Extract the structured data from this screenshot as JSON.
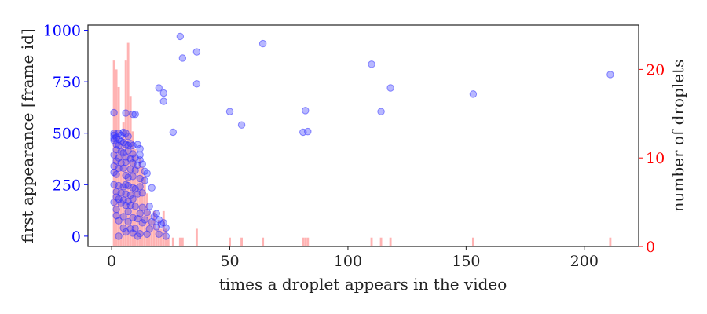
{
  "chart_data": {
    "type": "scatter",
    "xlabel": "times a droplet appears in the video",
    "ylabel_left": "first appearance [frame id]",
    "ylabel_right": "number of droplets",
    "xlim": [
      -10,
      223
    ],
    "ylim_left": [
      -50,
      1025
    ],
    "ylim_right": [
      0,
      25
    ],
    "x_ticks": [
      0,
      50,
      100,
      150,
      200
    ],
    "y_left_ticks": [
      0,
      250,
      500,
      750,
      1000
    ],
    "y_right_ticks": [
      0,
      10,
      20
    ],
    "grid": false,
    "colors": {
      "scatter": "#3333ff",
      "histogram": "#ff9999",
      "left_axis": "#0000ff",
      "right_axis": "#ff0000",
      "text": "#222222"
    },
    "series": [
      {
        "type": "scatter",
        "axis": "left",
        "points": [
          [
            29,
            970
          ],
          [
            64,
            935
          ],
          [
            36,
            895
          ],
          [
            30,
            865
          ],
          [
            110,
            835
          ],
          [
            211,
            785
          ],
          [
            36,
            740
          ],
          [
            118,
            720
          ],
          [
            20,
            720
          ],
          [
            22,
            695
          ],
          [
            153,
            690
          ],
          [
            22,
            655
          ],
          [
            82,
            610
          ],
          [
            50,
            605
          ],
          [
            114,
            605
          ],
          [
            1,
            600
          ],
          [
            6,
            598
          ],
          [
            9,
            592
          ],
          [
            10,
            592
          ],
          [
            55,
            540
          ],
          [
            26,
            505
          ],
          [
            81,
            505
          ],
          [
            83,
            508
          ],
          [
            1,
            500
          ],
          [
            1,
            490
          ],
          [
            1,
            475
          ],
          [
            1,
            465
          ],
          [
            2,
            480
          ],
          [
            3,
            500
          ],
          [
            4,
            490
          ],
          [
            5,
            505
          ],
          [
            6,
            500
          ],
          [
            7,
            485
          ],
          [
            3,
            470
          ],
          [
            4,
            460
          ],
          [
            5,
            455
          ],
          [
            2,
            445
          ],
          [
            3,
            440
          ],
          [
            6,
            445
          ],
          [
            7,
            440
          ],
          [
            8,
            450
          ],
          [
            9,
            440
          ],
          [
            11,
            445
          ],
          [
            12,
            425
          ],
          [
            2,
            420
          ],
          [
            4,
            410
          ],
          [
            5,
            405
          ],
          [
            7,
            415
          ],
          [
            9,
            400
          ],
          [
            12,
            395
          ],
          [
            1,
            395
          ],
          [
            3,
            380
          ],
          [
            6,
            385
          ],
          [
            8,
            375
          ],
          [
            10,
            380
          ],
          [
            12,
            370
          ],
          [
            2,
            365
          ],
          [
            4,
            355
          ],
          [
            6,
            360
          ],
          [
            9,
            355
          ],
          [
            11,
            345
          ],
          [
            13,
            350
          ],
          [
            1,
            340
          ],
          [
            3,
            330
          ],
          [
            5,
            330
          ],
          [
            8,
            325
          ],
          [
            10,
            320
          ],
          [
            14,
            315
          ],
          [
            15,
            305
          ],
          [
            1,
            310
          ],
          [
            2,
            300
          ],
          [
            6,
            295
          ],
          [
            7,
            285
          ],
          [
            9,
            290
          ],
          [
            12,
            280
          ],
          [
            14,
            270
          ],
          [
            1,
            250
          ],
          [
            3,
            245
          ],
          [
            5,
            240
          ],
          [
            6,
            250
          ],
          [
            7,
            245
          ],
          [
            9,
            235
          ],
          [
            10,
            230
          ],
          [
            12,
            240
          ],
          [
            17,
            235
          ],
          [
            2,
            215
          ],
          [
            4,
            210
          ],
          [
            6,
            205
          ],
          [
            8,
            200
          ],
          [
            11,
            205
          ],
          [
            13,
            210
          ],
          [
            2,
            190
          ],
          [
            3,
            180
          ],
          [
            5,
            175
          ],
          [
            7,
            170
          ],
          [
            9,
            180
          ],
          [
            1,
            165
          ],
          [
            4,
            160
          ],
          [
            6,
            150
          ],
          [
            8,
            150
          ],
          [
            10,
            145
          ],
          [
            13,
            140
          ],
          [
            16,
            145
          ],
          [
            2,
            130
          ],
          [
            7,
            120
          ],
          [
            12,
            110
          ],
          [
            15,
            115
          ],
          [
            19,
            110
          ],
          [
            2,
            100
          ],
          [
            5,
            95
          ],
          [
            9,
            90
          ],
          [
            11,
            85
          ],
          [
            14,
            80
          ],
          [
            18,
            95
          ],
          [
            20,
            80
          ],
          [
            3,
            75
          ],
          [
            7,
            70
          ],
          [
            13,
            65
          ],
          [
            17,
            70
          ],
          [
            21,
            60
          ],
          [
            22,
            65
          ],
          [
            5,
            40
          ],
          [
            8,
            35
          ],
          [
            10,
            38
          ],
          [
            16,
            35
          ],
          [
            19,
            45
          ],
          [
            23,
            40
          ],
          [
            6,
            20
          ],
          [
            9,
            15
          ],
          [
            12,
            12
          ],
          [
            15,
            10
          ],
          [
            20,
            10
          ],
          [
            3,
            0
          ],
          [
            11,
            0
          ],
          [
            23,
            0
          ]
        ]
      },
      {
        "type": "bar",
        "axis": "right",
        "bins": [
          [
            1,
            21
          ],
          [
            2,
            20
          ],
          [
            3,
            18
          ],
          [
            4,
            12
          ],
          [
            5,
            14
          ],
          [
            6,
            21
          ],
          [
            7,
            23
          ],
          [
            8,
            17
          ],
          [
            9,
            13
          ],
          [
            10,
            11
          ],
          [
            11,
            9
          ],
          [
            12,
            10
          ],
          [
            13,
            9
          ],
          [
            14,
            8
          ],
          [
            15,
            6
          ],
          [
            16,
            4
          ],
          [
            17,
            3
          ],
          [
            18,
            4
          ],
          [
            19,
            2
          ],
          [
            20,
            3
          ],
          [
            21,
            2
          ],
          [
            22,
            4
          ],
          [
            23,
            2
          ],
          [
            24,
            1
          ],
          [
            26,
            1
          ],
          [
            29,
            1
          ],
          [
            30,
            1
          ],
          [
            36,
            2
          ],
          [
            50,
            1
          ],
          [
            55,
            1
          ],
          [
            64,
            1
          ],
          [
            81,
            1
          ],
          [
            82,
            1
          ],
          [
            83,
            1
          ],
          [
            110,
            1
          ],
          [
            114,
            1
          ],
          [
            118,
            1
          ],
          [
            153,
            1
          ],
          [
            211,
            1
          ]
        ]
      }
    ]
  }
}
